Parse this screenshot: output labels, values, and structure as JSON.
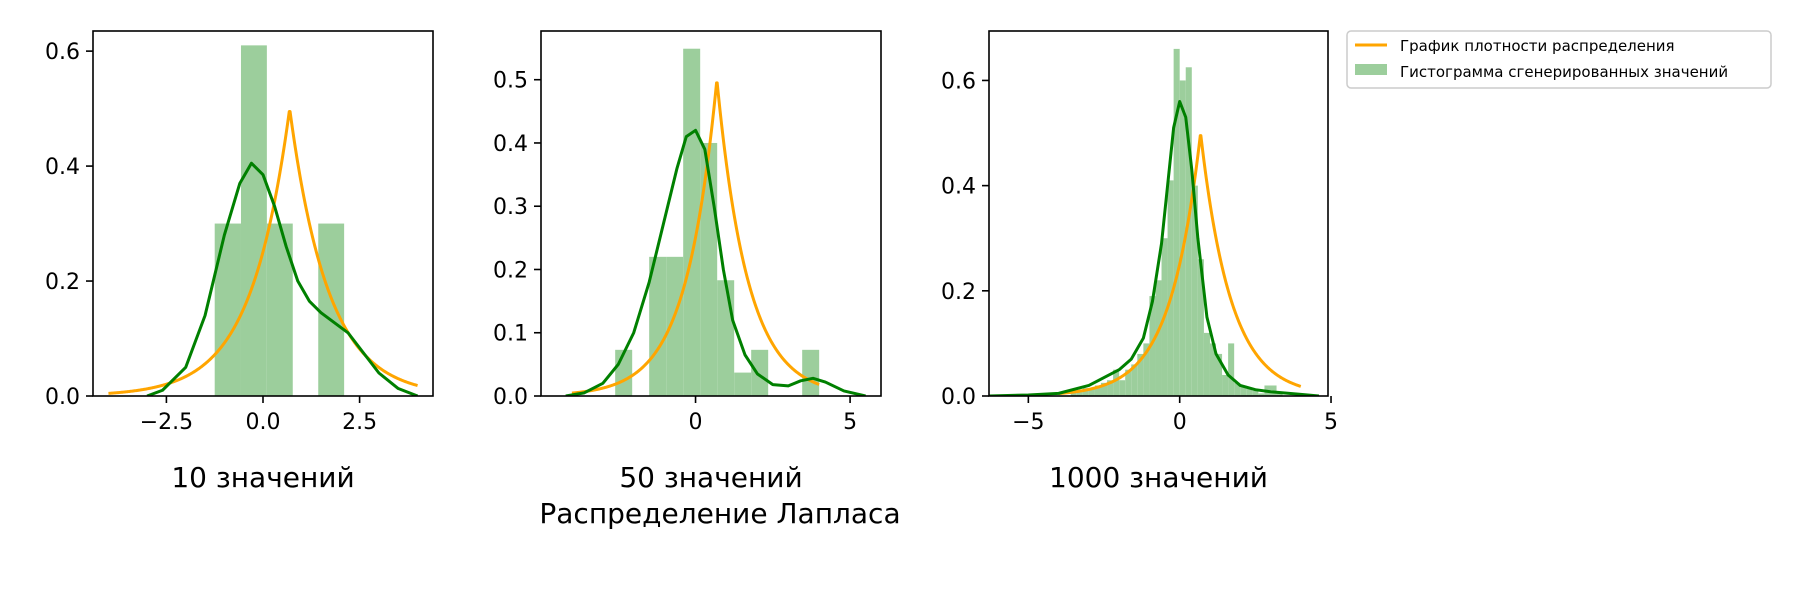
{
  "figure": {
    "suptitle": "Распределение Лапласа"
  },
  "legend": {
    "placement": "upper-right-outside",
    "entries": [
      {
        "label": "График плотности распределения",
        "kind": "line",
        "color": "#FFA500"
      },
      {
        "label": "Гистограмма сгенерированных значений",
        "kind": "patch",
        "color": "#9CCE9C"
      }
    ]
  },
  "colors": {
    "density": "#FFA500",
    "kde": "#008000",
    "hist": "#9CCE9C"
  },
  "chart_data": [
    {
      "type": "histogram+line",
      "title": "10 значений",
      "xlim": [
        -4.4,
        4.4
      ],
      "ylim": [
        0,
        0.635
      ],
      "xticks": [
        -2.5,
        0.0,
        2.5
      ],
      "xtick_labels": [
        "−2.5",
        "0.0",
        "2.5"
      ],
      "yticks": [
        0.0,
        0.2,
        0.4,
        0.6
      ],
      "ytick_labels": [
        "0.0",
        "0.2",
        "0.4",
        "0.6"
      ],
      "histogram": {
        "bins": [
          [
            -1.25,
            -0.57,
            0.3
          ],
          [
            -0.57,
            0.1,
            0.61
          ],
          [
            0.1,
            0.77,
            0.3
          ],
          [
            0.77,
            1.43,
            0.0
          ],
          [
            1.43,
            2.1,
            0.3
          ]
        ]
      },
      "density_peak": [
        0.69,
        0.5
      ],
      "kde": [
        [
          -3.0,
          0.0
        ],
        [
          -2.6,
          0.01
        ],
        [
          -2.0,
          0.05
        ],
        [
          -1.5,
          0.14
        ],
        [
          -1.0,
          0.28
        ],
        [
          -0.6,
          0.37
        ],
        [
          -0.3,
          0.405
        ],
        [
          0.0,
          0.385
        ],
        [
          0.3,
          0.33
        ],
        [
          0.6,
          0.26
        ],
        [
          0.9,
          0.2
        ],
        [
          1.2,
          0.165
        ],
        [
          1.5,
          0.145
        ],
        [
          1.8,
          0.13
        ],
        [
          2.2,
          0.11
        ],
        [
          2.6,
          0.075
        ],
        [
          3.0,
          0.04
        ],
        [
          3.5,
          0.013
        ],
        [
          4.0,
          0.0
        ]
      ]
    },
    {
      "type": "histogram+line",
      "title": "50 значений",
      "xlim": [
        -5.0,
        6.0
      ],
      "ylim": [
        0,
        0.577
      ],
      "xticks": [
        0,
        5
      ],
      "xtick_labels": [
        "0",
        "5"
      ],
      "yticks": [
        0.0,
        0.1,
        0.2,
        0.3,
        0.4,
        0.5
      ],
      "ytick_labels": [
        "0.0",
        "0.1",
        "0.2",
        "0.3",
        "0.4",
        "0.5"
      ],
      "histogram": {
        "bins": [
          [
            -2.6,
            -2.05,
            0.073
          ],
          [
            -2.05,
            -1.5,
            0.0
          ],
          [
            -1.5,
            -0.95,
            0.22
          ],
          [
            -0.95,
            -0.4,
            0.22
          ],
          [
            -0.4,
            0.15,
            0.549
          ],
          [
            0.15,
            0.7,
            0.4
          ],
          [
            0.7,
            1.25,
            0.183
          ],
          [
            1.25,
            1.8,
            0.037
          ],
          [
            1.8,
            2.35,
            0.073
          ],
          [
            2.35,
            2.9,
            0.0
          ],
          [
            2.9,
            3.45,
            0.0
          ],
          [
            3.45,
            4.0,
            0.073
          ]
        ]
      },
      "density_peak": [
        0.69,
        0.5
      ],
      "kde": [
        [
          -4.2,
          0.0
        ],
        [
          -3.6,
          0.005
        ],
        [
          -3.0,
          0.02
        ],
        [
          -2.5,
          0.05
        ],
        [
          -2.0,
          0.1
        ],
        [
          -1.5,
          0.18
        ],
        [
          -1.0,
          0.28
        ],
        [
          -0.6,
          0.36
        ],
        [
          -0.3,
          0.41
        ],
        [
          0.0,
          0.42
        ],
        [
          0.3,
          0.39
        ],
        [
          0.6,
          0.3
        ],
        [
          0.9,
          0.2
        ],
        [
          1.2,
          0.12
        ],
        [
          1.6,
          0.065
        ],
        [
          2.0,
          0.035
        ],
        [
          2.5,
          0.018
        ],
        [
          3.0,
          0.016
        ],
        [
          3.4,
          0.024
        ],
        [
          3.8,
          0.028
        ],
        [
          4.2,
          0.022
        ],
        [
          4.8,
          0.008
        ],
        [
          5.5,
          0.0
        ]
      ]
    },
    {
      "type": "histogram+line",
      "title": "1000 значений",
      "xlim": [
        -6.3,
        4.9
      ],
      "ylim": [
        0,
        0.694
      ],
      "xticks": [
        -5,
        0,
        5
      ],
      "xtick_labels": [
        "−5",
        "0",
        "5"
      ],
      "yticks": [
        0.0,
        0.2,
        0.4,
        0.6
      ],
      "ytick_labels": [
        "0.0",
        "0.2",
        "0.4",
        "0.6"
      ],
      "histogram": {
        "bins": [
          [
            -3.6,
            -3.4,
            0.01
          ],
          [
            -3.4,
            -3.2,
            0.01
          ],
          [
            -3.2,
            -3.0,
            0.015
          ],
          [
            -3.0,
            -2.8,
            0.015
          ],
          [
            -2.8,
            -2.6,
            0.02
          ],
          [
            -2.6,
            -2.4,
            0.025
          ],
          [
            -2.4,
            -2.2,
            0.03
          ],
          [
            -2.2,
            -2.0,
            0.05
          ],
          [
            -2.0,
            -1.8,
            0.03
          ],
          [
            -1.8,
            -1.6,
            0.05
          ],
          [
            -1.6,
            -1.4,
            0.06
          ],
          [
            -1.4,
            -1.2,
            0.08
          ],
          [
            -1.2,
            -1.0,
            0.1
          ],
          [
            -1.0,
            -0.8,
            0.19
          ],
          [
            -0.8,
            -0.6,
            0.22
          ],
          [
            -0.6,
            -0.4,
            0.3
          ],
          [
            -0.4,
            -0.2,
            0.41
          ],
          [
            -0.2,
            0.0,
            0.66
          ],
          [
            0.0,
            0.2,
            0.6
          ],
          [
            0.2,
            0.4,
            0.625
          ],
          [
            0.4,
            0.6,
            0.4
          ],
          [
            0.6,
            0.8,
            0.26
          ],
          [
            0.8,
            1.0,
            0.12
          ],
          [
            1.0,
            1.2,
            0.1
          ],
          [
            1.2,
            1.4,
            0.08
          ],
          [
            1.4,
            1.6,
            0.04
          ],
          [
            1.6,
            1.8,
            0.1
          ],
          [
            1.8,
            2.0,
            0.025
          ],
          [
            2.0,
            2.2,
            0.02
          ],
          [
            2.2,
            2.4,
            0.015
          ],
          [
            2.4,
            2.6,
            0.01
          ],
          [
            2.6,
            2.8,
            0.005
          ],
          [
            2.8,
            3.0,
            0.02
          ],
          [
            3.0,
            3.2,
            0.02
          ],
          [
            3.2,
            3.4,
            0.005
          ]
        ]
      },
      "density_peak": [
        0.69,
        0.5
      ],
      "kde": [
        [
          -6.3,
          0.0
        ],
        [
          -5.0,
          0.002
        ],
        [
          -4.0,
          0.005
        ],
        [
          -3.0,
          0.02
        ],
        [
          -2.5,
          0.035
        ],
        [
          -2.0,
          0.05
        ],
        [
          -1.6,
          0.07
        ],
        [
          -1.2,
          0.11
        ],
        [
          -0.9,
          0.18
        ],
        [
          -0.6,
          0.29
        ],
        [
          -0.4,
          0.4
        ],
        [
          -0.2,
          0.51
        ],
        [
          0.0,
          0.56
        ],
        [
          0.2,
          0.53
        ],
        [
          0.4,
          0.43
        ],
        [
          0.6,
          0.3
        ],
        [
          0.9,
          0.15
        ],
        [
          1.2,
          0.08
        ],
        [
          1.6,
          0.04
        ],
        [
          2.0,
          0.02
        ],
        [
          2.5,
          0.012
        ],
        [
          3.0,
          0.008
        ],
        [
          4.0,
          0.003
        ],
        [
          4.6,
          0.0
        ]
      ]
    }
  ]
}
